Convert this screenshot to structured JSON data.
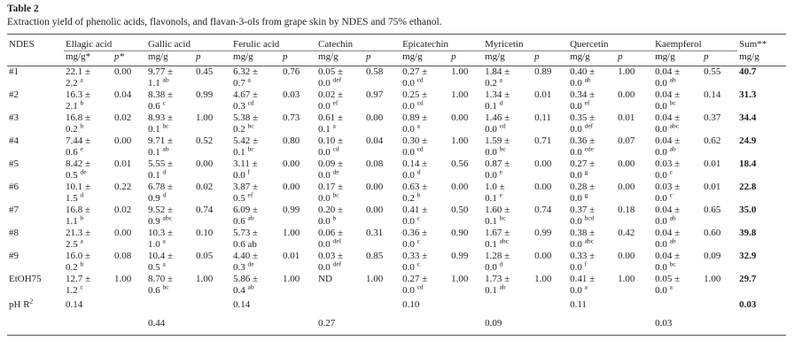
{
  "header": {
    "title": "Table 2",
    "caption": "Extraction yield of phenolic acids, flavonols, and flavan-3-ols from grape skin by NDES and 75% ethanol."
  },
  "table": {
    "columns": [
      "NDES",
      "Ellagic acid",
      "Gallic acid",
      "Ferulic acid",
      "Catechin",
      "Epicatechin",
      "Myricetin",
      "Quercetin",
      "Kaempferol",
      "Sum**"
    ],
    "units": [
      "mg/g*",
      "p*",
      "mg/g",
      "p",
      "mg/g",
      "p",
      "mg/g",
      "p",
      "mg/g",
      "p",
      "mg/g",
      "p",
      "mg/g",
      "p",
      "mg/g",
      "p",
      "mg/g"
    ],
    "rows": [
      {
        "label": "#1",
        "cells": [
          [
            "22.1 ±",
            "2.2",
            "a"
          ],
          "0.00",
          [
            "9.77 ±",
            "1.1",
            "ab"
          ],
          "0.45",
          [
            "6.32 ±",
            "0.7",
            "a"
          ],
          "0.76",
          [
            "0.05 ±",
            "0.0",
            "def"
          ],
          "0.58",
          [
            "0.27 ±",
            "0.0",
            "cd"
          ],
          "1.00",
          [
            "1.84 ±",
            "0.2",
            "a"
          ],
          "0.89",
          [
            "0.40 ±",
            "0.0",
            "ab"
          ],
          "1.00",
          [
            "0.04 ±",
            "0.0",
            "ab"
          ],
          "0.55"
        ],
        "sum": "40.7"
      },
      {
        "label": "#2",
        "cells": [
          [
            "16.3 ±",
            "2.1",
            "b"
          ],
          "0.04",
          [
            "8.38 ±",
            "0.6",
            "c"
          ],
          "0.99",
          [
            "4.67 ±",
            "0.3",
            "cd"
          ],
          "0.03",
          [
            "0.02 ±",
            "0.0",
            "ef"
          ],
          "0.97",
          [
            "0.25 ±",
            "0.0",
            "cd"
          ],
          "1.00",
          [
            "1.34 ±",
            "0.1",
            "d"
          ],
          "0.01",
          [
            "0.34 ±",
            "0.0",
            "ef"
          ],
          "0.00",
          [
            "0.04 ±",
            "0.0",
            "bc"
          ],
          "0.14"
        ],
        "sum": "31.3"
      },
      {
        "label": "#3",
        "cells": [
          [
            "16.8 ±",
            "0.2",
            "b"
          ],
          "0.02",
          [
            "8.93 ±",
            "0.1",
            "bc"
          ],
          "1.00",
          [
            "5.38 ±",
            "0.2",
            "bc"
          ],
          "0.73",
          [
            "0.61 ±",
            "0.1",
            "a"
          ],
          "0.00",
          [
            "0.89 ±",
            "0.0",
            "a"
          ],
          "0.00",
          [
            "1.46 ±",
            "0.0",
            "cd"
          ],
          "0.11",
          [
            "0.35 ±",
            "0.0",
            "def"
          ],
          "0.01",
          [
            "0.04 ±",
            "0.0",
            "abc"
          ],
          "0.37"
        ],
        "sum": "34.4"
      },
      {
        "label": "#4",
        "cells": [
          [
            "7.44 ±",
            "0.6",
            "e"
          ],
          "0.00",
          [
            "9.71 ±",
            "0.1",
            "ab"
          ],
          "0.52",
          [
            "5.42 ±",
            "0.1",
            "bc"
          ],
          "0.80",
          [
            "0.10 ±",
            "0.0",
            "cd"
          ],
          "0.04",
          [
            "0.30 ±",
            "0.0",
            "cd"
          ],
          "1.00",
          [
            "1.59 ±",
            "0.0",
            "bc"
          ],
          "0.71",
          [
            "0.36 ±",
            "0.0",
            "cde"
          ],
          "0.07",
          [
            "0.04 ±",
            "0.0",
            "ab"
          ],
          "0.62"
        ],
        "sum": "24.9"
      },
      {
        "label": "#5",
        "cells": [
          [
            "8.42 ±",
            "0.5",
            "de"
          ],
          "0.01",
          [
            "5.55 ±",
            "0.1",
            "d"
          ],
          "0.00",
          [
            "3.11 ±",
            "0.0",
            "f"
          ],
          "0.00",
          [
            "0.09 ±",
            "0.0",
            "de"
          ],
          "0.08",
          [
            "0.14 ±",
            "0.0",
            "d"
          ],
          "0.56",
          [
            "0.87 ±",
            "0.0",
            "e"
          ],
          "0.00",
          [
            "0.27 ±",
            "0.0",
            "g"
          ],
          "0.00",
          [
            "0.03 ±",
            "0.0",
            "c"
          ],
          "0.01"
        ],
        "sum": "18.4"
      },
      {
        "label": "#6",
        "cells": [
          [
            "10.1 ±",
            "1.5",
            "d"
          ],
          "0.22",
          [
            "6.78 ±",
            "0.9",
            "d"
          ],
          "0.02",
          [
            "3.87 ±",
            "0.5",
            "ef"
          ],
          "0.00",
          [
            "0.17 ±",
            "0.0",
            "bc"
          ],
          "0.00",
          [
            "0.63 ±",
            "0.2",
            "b"
          ],
          "0.00",
          [
            "1.0 ±",
            "0.1",
            "e"
          ],
          "0.00",
          [
            "0.28 ±",
            "0.0",
            "g"
          ],
          "0.00",
          [
            "0.03 ±",
            "0.0",
            "c"
          ],
          "0.01"
        ],
        "sum": "22.8"
      },
      {
        "label": "#7",
        "cells": [
          [
            "16.8 ±",
            "1.1",
            "b"
          ],
          "0.02",
          [
            "9.52 ±",
            "0.9",
            "abc"
          ],
          "0.74",
          [
            "6.09 ±",
            "0.6",
            "ab"
          ],
          "0.99",
          [
            "0.20 ±",
            "0.0",
            "b"
          ],
          "0.00",
          [
            "0.41 ±",
            "0.0",
            "c"
          ],
          "0.50",
          [
            "1.60 ±",
            "0.1",
            "bc"
          ],
          "0.74",
          [
            "0.37 ±",
            "0.0",
            "bcd"
          ],
          "0.18",
          [
            "0.04 ±",
            "0.0",
            "ab"
          ],
          "0.65"
        ],
        "sum": "35.0"
      },
      {
        "label": "#8",
        "cells": [
          [
            "21.3 ±",
            "2.5",
            "a"
          ],
          "0.00",
          [
            "10.3 ±",
            "1.0",
            "a"
          ],
          "0.10",
          [
            "5.73 ±",
            "0.6 ab",
            ""
          ],
          "1.00",
          [
            "0.06 ±",
            "0.0",
            "def"
          ],
          "0.31",
          [
            "0.36 ±",
            "0.0",
            "c"
          ],
          "0.90",
          [
            "1.67 ±",
            "0.1",
            "abc"
          ],
          "0.99",
          [
            "0.38 ±",
            "0.0",
            "abc"
          ],
          "0.42",
          [
            "0.04 ±",
            "0.0",
            "ab"
          ],
          "0.60"
        ],
        "sum": "39.8"
      },
      {
        "label": "#9",
        "cells": [
          [
            "16.0 ±",
            "0.2",
            "b"
          ],
          "0.08",
          [
            "10.4 ±",
            "0.5",
            "a"
          ],
          "0.05",
          [
            "4.40 ±",
            "0.3",
            "de"
          ],
          "0.01",
          [
            "0.03 ±",
            "0.0",
            "def"
          ],
          "0.85",
          [
            "0.33 ±",
            "0.0",
            "c"
          ],
          "0.99",
          [
            "1.28 ±",
            "0.0",
            "d"
          ],
          "0.00",
          [
            "0.33 ±",
            "0.0",
            "f"
          ],
          "0.00",
          [
            "0.04 ±",
            "0.0",
            "bc"
          ],
          "0.09"
        ],
        "sum": "32.9"
      },
      {
        "label": "EtOH75",
        "cells": [
          [
            "12.7 ±",
            "1.2",
            "c"
          ],
          "1.00",
          [
            "8.70 ±",
            "0.6",
            "bc"
          ],
          "1.00",
          [
            "5.86 ±",
            "0.4",
            "ab"
          ],
          "1.00",
          [
            "ND"
          ],
          "1.00",
          [
            "0.27 ±",
            "0.0",
            "cd"
          ],
          "1.00",
          [
            "1.73 ±",
            "0.1",
            "ab"
          ],
          "1.00",
          [
            "0.41 ±",
            "0.0",
            "a"
          ],
          "1.00",
          [
            "0.05 ±",
            "0.0",
            "a"
          ],
          "1.00"
        ],
        "sum": "29.7"
      }
    ],
    "ph_r2": {
      "label": "pH R",
      "label_sup": "2",
      "values": [
        "0.14",
        "0.44",
        "0.14",
        "0.27",
        "0.10",
        "0.09",
        "0.11",
        "0.03"
      ],
      "sum": "0.03"
    }
  }
}
